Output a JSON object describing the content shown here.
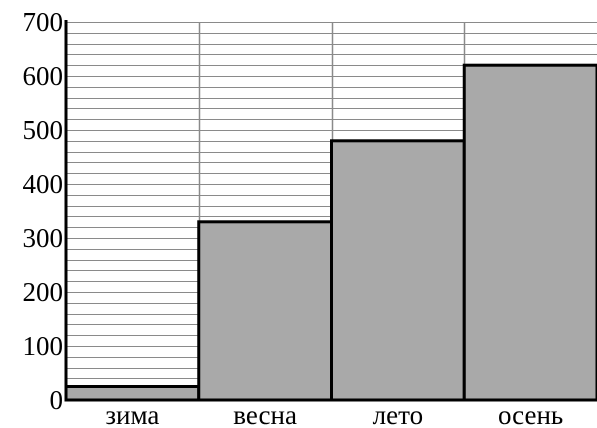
{
  "colors": {
    "bar_fill": "#a9a9a9",
    "bar_stroke": "#000000",
    "grid": "#8a8a8a",
    "axis": "#000000",
    "background": "#ffffff"
  },
  "chart_data": {
    "type": "bar",
    "categories": [
      "зима",
      "весна",
      "лето",
      "осень"
    ],
    "values": [
      25,
      330,
      480,
      620
    ],
    "y_ticks": [
      "0",
      "100",
      "200",
      "300",
      "400",
      "500",
      "600",
      "700"
    ],
    "ylim": [
      0,
      700
    ],
    "minor_step": 20,
    "grid": true,
    "title": "",
    "xlabel": "",
    "ylabel": ""
  }
}
